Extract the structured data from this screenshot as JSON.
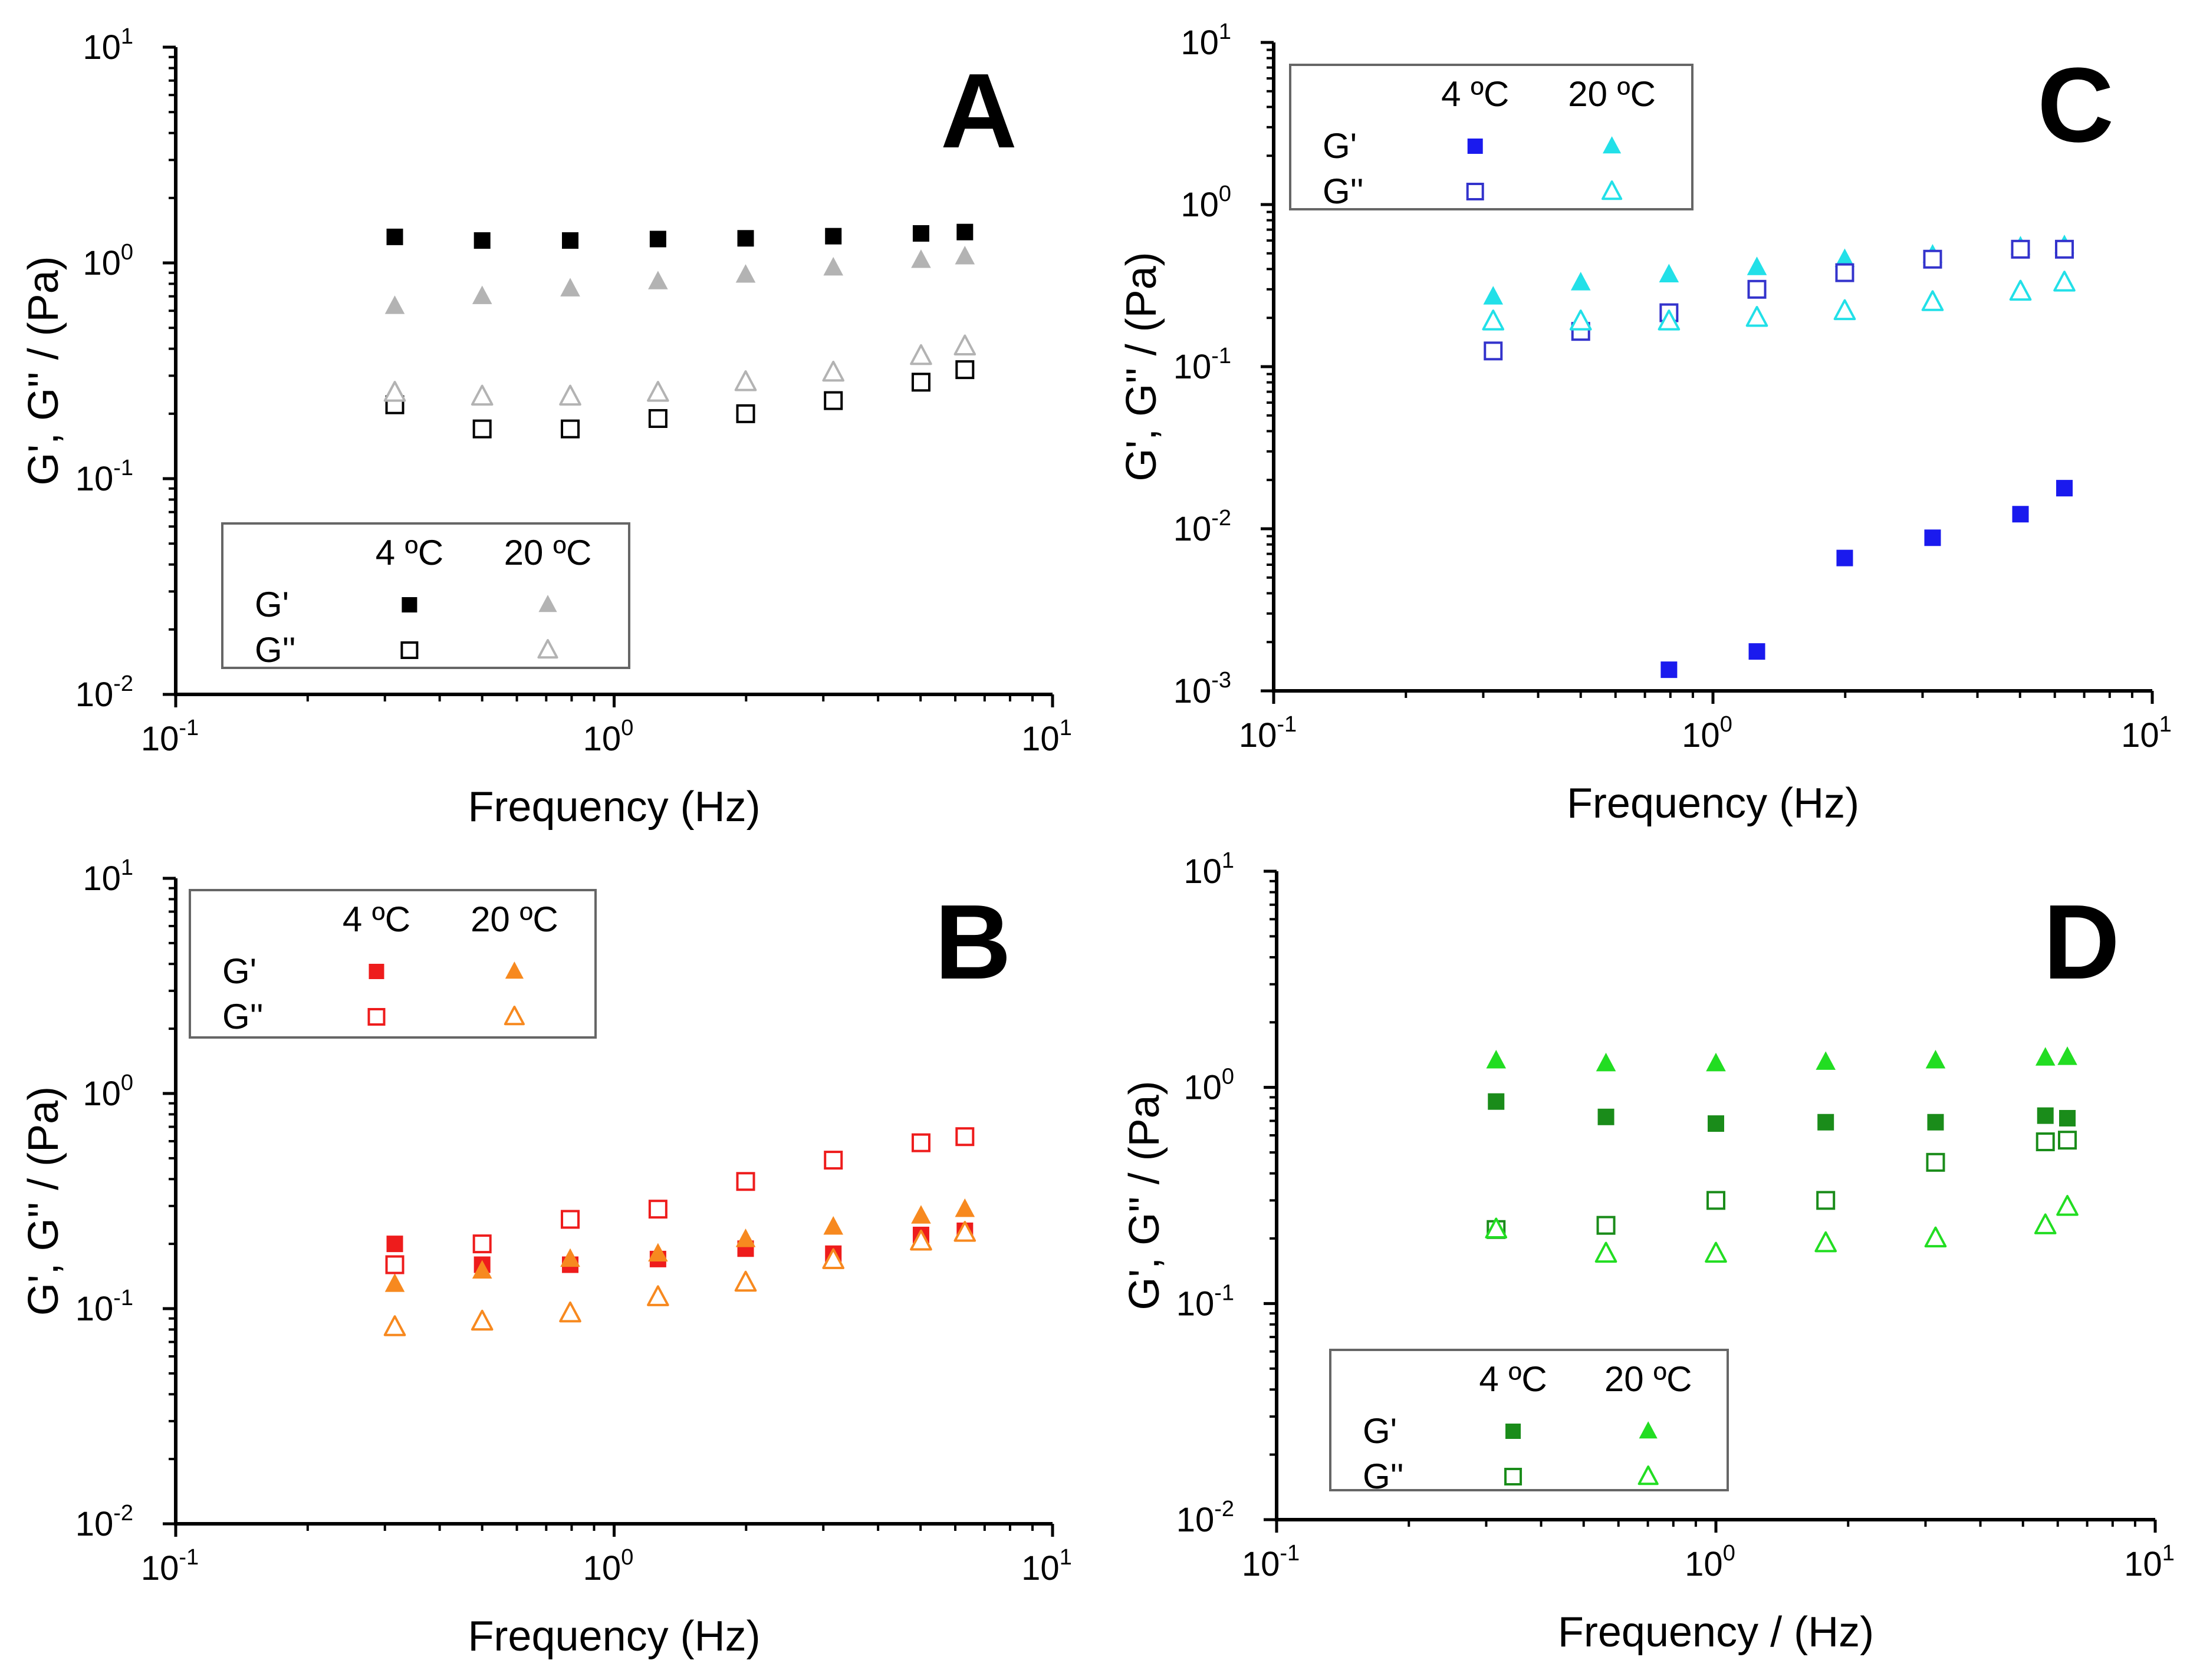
{
  "chart_data": [
    {
      "panel": "A",
      "type": "scatter",
      "xlabel": "Frequency (Hz)",
      "ylabel": "G', G'' / (Pa)",
      "xscale": "log",
      "yscale": "log",
      "xlim": [
        0.1,
        10
      ],
      "ylim": [
        0.01,
        10
      ],
      "xticks": [
        {
          "base": "10",
          "exp": "-1"
        },
        {
          "base": "10",
          "exp": "0"
        },
        {
          "base": "10",
          "exp": "1"
        }
      ],
      "yticks": [
        {
          "base": "10",
          "exp": "-2"
        },
        {
          "base": "10",
          "exp": "-1"
        },
        {
          "base": "10",
          "exp": "0"
        },
        {
          "base": "10",
          "exp": "1"
        }
      ],
      "legend": {
        "placement": "bottom-left",
        "columns": [
          "4 ºC",
          "20 ºC"
        ],
        "rows": [
          "G'",
          "G''"
        ]
      },
      "series": [
        {
          "name": "G' 4 ºC",
          "marker": "square-filled",
          "color": "#000000",
          "x": [
            0.316,
            0.5,
            0.794,
            1.259,
            1.995,
            3.162,
            5.012,
            6.31
          ],
          "y": [
            1.32,
            1.27,
            1.27,
            1.29,
            1.3,
            1.33,
            1.37,
            1.39
          ]
        },
        {
          "name": "G' 20 ºC",
          "marker": "triangle-filled",
          "color": "#b3b3b3",
          "x": [
            0.316,
            0.5,
            0.794,
            1.259,
            1.995,
            3.162,
            5.012,
            6.31
          ],
          "y": [
            0.63,
            0.7,
            0.76,
            0.82,
            0.88,
            0.95,
            1.03,
            1.07
          ]
        },
        {
          "name": "G'' 4 ºC",
          "marker": "square-open",
          "color": "#000000",
          "x": [
            0.316,
            0.5,
            0.794,
            1.259,
            1.995,
            3.162,
            5.012,
            6.31
          ],
          "y": [
            0.22,
            0.17,
            0.17,
            0.19,
            0.2,
            0.23,
            0.28,
            0.32
          ]
        },
        {
          "name": "G'' 20 ºC",
          "marker": "triangle-open",
          "color": "#b3b3b3",
          "x": [
            0.316,
            0.5,
            0.794,
            1.259,
            1.995,
            3.162,
            5.012,
            6.31
          ],
          "y": [
            0.25,
            0.24,
            0.24,
            0.25,
            0.28,
            0.31,
            0.37,
            0.41
          ]
        }
      ]
    },
    {
      "panel": "B",
      "type": "scatter",
      "xlabel": "Frequency (Hz)",
      "ylabel": "G', G'' / (Pa)",
      "xscale": "log",
      "yscale": "log",
      "xlim": [
        0.1,
        10
      ],
      "ylim": [
        0.01,
        10
      ],
      "xticks": [
        {
          "base": "10",
          "exp": "-1"
        },
        {
          "base": "10",
          "exp": "0"
        },
        {
          "base": "10",
          "exp": "1"
        }
      ],
      "yticks": [
        {
          "base": "10",
          "exp": "-2"
        },
        {
          "base": "10",
          "exp": "-1"
        },
        {
          "base": "10",
          "exp": "0"
        },
        {
          "base": "10",
          "exp": "1"
        }
      ],
      "legend": {
        "placement": "top-left",
        "columns": [
          "4 ºC",
          "20 ºC"
        ],
        "rows": [
          "G'",
          "G''"
        ]
      },
      "series": [
        {
          "name": "G' 4 ºC",
          "marker": "square-filled",
          "color": "#ee1c1c",
          "x": [
            0.316,
            0.5,
            0.794,
            1.259,
            1.995,
            3.162,
            5.012,
            6.31
          ],
          "y": [
            0.2,
            0.16,
            0.16,
            0.17,
            0.19,
            0.18,
            0.22,
            0.23
          ]
        },
        {
          "name": "G' 20 ºC",
          "marker": "triangle-filled",
          "color": "#f7891f",
          "x": [
            0.316,
            0.5,
            0.794,
            1.259,
            1.995,
            3.162,
            5.012,
            6.31
          ],
          "y": [
            0.13,
            0.15,
            0.17,
            0.18,
            0.21,
            0.24,
            0.27,
            0.29
          ]
        },
        {
          "name": "G'' 4 ºC",
          "marker": "square-open",
          "color": "#ee1c1c",
          "x": [
            0.316,
            0.5,
            0.794,
            1.259,
            1.995,
            3.162,
            5.012,
            6.31
          ],
          "y": [
            0.16,
            0.2,
            0.26,
            0.29,
            0.39,
            0.49,
            0.59,
            0.63
          ]
        },
        {
          "name": "G'' 20 ºC",
          "marker": "triangle-open",
          "color": "#f7891f",
          "x": [
            0.316,
            0.5,
            0.794,
            1.259,
            1.995,
            3.162,
            5.012,
            6.31
          ],
          "y": [
            0.082,
            0.087,
            0.095,
            0.113,
            0.132,
            0.168,
            0.205,
            0.225
          ]
        }
      ]
    },
    {
      "panel": "C",
      "type": "scatter",
      "xlabel": "Frequency (Hz)",
      "ylabel": "G', G'' / (Pa)",
      "xscale": "log",
      "yscale": "log",
      "xlim": [
        0.1,
        10
      ],
      "ylim": [
        0.001,
        10
      ],
      "xticks": [
        {
          "base": "10",
          "exp": "-1"
        },
        {
          "base": "10",
          "exp": "0"
        },
        {
          "base": "10",
          "exp": "1"
        }
      ],
      "yticks": [
        {
          "base": "10",
          "exp": "-3"
        },
        {
          "base": "10",
          "exp": "-2"
        },
        {
          "base": "10",
          "exp": "-1"
        },
        {
          "base": "10",
          "exp": "0"
        },
        {
          "base": "10",
          "exp": "1"
        }
      ],
      "legend": {
        "placement": "top-left",
        "columns": [
          "4 ºC",
          "20 ºC"
        ],
        "rows": [
          "G'",
          "G''"
        ]
      },
      "series": [
        {
          "name": "G' 4 ºC",
          "marker": "square-filled",
          "color": "#1a1aee",
          "x": [
            0.794,
            1.259,
            1.995,
            3.162,
            5.012,
            6.31
          ],
          "y": [
            0.00135,
            0.00175,
            0.0066,
            0.0088,
            0.0123,
            0.0178
          ]
        },
        {
          "name": "G' 20 ºC",
          "marker": "triangle-filled",
          "color": "#22e0e8",
          "x": [
            0.316,
            0.5,
            0.794,
            1.259,
            1.995,
            3.162,
            5.012,
            6.31
          ],
          "y": [
            0.27,
            0.33,
            0.37,
            0.41,
            0.46,
            0.49,
            0.55,
            0.56
          ]
        },
        {
          "name": "G'' 4 ºC",
          "marker": "square-open",
          "color": "#3333cc",
          "x": [
            0.316,
            0.5,
            0.794,
            1.259,
            1.995,
            3.162,
            5.012,
            6.31
          ],
          "y": [
            0.125,
            0.165,
            0.215,
            0.3,
            0.38,
            0.46,
            0.53,
            0.53
          ]
        },
        {
          "name": "G'' 20 ºC",
          "marker": "triangle-open",
          "color": "#22e0e8",
          "x": [
            0.316,
            0.5,
            0.794,
            1.259,
            1.995,
            3.162,
            5.012,
            6.31
          ],
          "y": [
            0.19,
            0.19,
            0.19,
            0.2,
            0.22,
            0.25,
            0.29,
            0.33
          ]
        }
      ]
    },
    {
      "panel": "D",
      "type": "scatter",
      "xlabel": "Frequency / (Hz)",
      "ylabel": "G', G'' / (Pa)",
      "xscale": "log",
      "yscale": "log",
      "xlim": [
        0.1,
        10
      ],
      "ylim": [
        0.01,
        10
      ],
      "xticks": [
        {
          "base": "10",
          "exp": "-1"
        },
        {
          "base": "10",
          "exp": "0"
        },
        {
          "base": "10",
          "exp": "1"
        }
      ],
      "yticks": [
        {
          "base": "10",
          "exp": "-2"
        },
        {
          "base": "10",
          "exp": "-1"
        },
        {
          "base": "10",
          "exp": "0"
        },
        {
          "base": "10",
          "exp": "1"
        }
      ],
      "legend": {
        "placement": "bottom-left",
        "columns": [
          "4 ºC",
          "20 ºC"
        ],
        "rows": [
          "G'",
          "G''"
        ]
      },
      "series": [
        {
          "name": "G' 4 ºC",
          "marker": "square-filled",
          "color": "#1a8c1a",
          "x": [
            0.316,
            0.562,
            1.0,
            1.778,
            3.162,
            5.623,
            6.31
          ],
          "y": [
            0.86,
            0.73,
            0.68,
            0.69,
            0.69,
            0.74,
            0.72
          ]
        },
        {
          "name": "G' 20 ºC",
          "marker": "triangle-filled",
          "color": "#22dd22",
          "x": [
            0.316,
            0.562,
            1.0,
            1.778,
            3.162,
            5.623,
            6.31
          ],
          "y": [
            1.33,
            1.29,
            1.29,
            1.31,
            1.33,
            1.37,
            1.38
          ]
        },
        {
          "name": "G'' 4 ºC",
          "marker": "square-open",
          "color": "#1a8c1a",
          "x": [
            0.316,
            0.562,
            1.0,
            1.778,
            3.162,
            5.623,
            6.31
          ],
          "y": [
            0.22,
            0.23,
            0.3,
            0.3,
            0.45,
            0.56,
            0.57
          ]
        },
        {
          "name": "G'' 20 ºC",
          "marker": "triangle-open",
          "color": "#22dd22",
          "x": [
            0.316,
            0.562,
            1.0,
            1.778,
            3.162,
            5.623,
            6.31
          ],
          "y": [
            0.22,
            0.17,
            0.17,
            0.19,
            0.2,
            0.23,
            0.28
          ]
        }
      ]
    }
  ]
}
